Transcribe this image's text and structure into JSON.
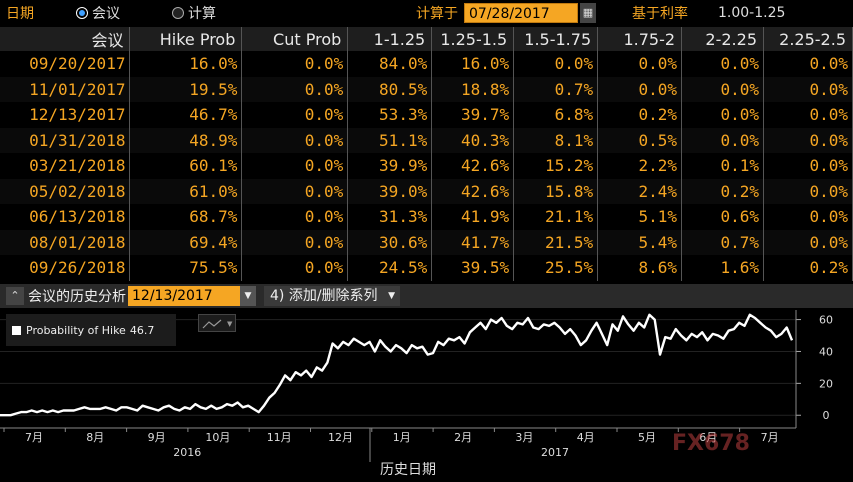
{
  "toolbar": {
    "date_label": "日期",
    "radio_meeting": "会议",
    "radio_calc": "计算",
    "calc_at_label": "计算于",
    "calc_date": "07/28/2017",
    "base_rate_label": "基于利率",
    "base_rate_value": "1.00-1.25"
  },
  "table": {
    "headers": [
      "会议",
      "Hike Prob",
      "Cut Prob",
      "1-1.25",
      "1.25-1.5",
      "1.5-1.75",
      "1.75-2",
      "2-2.25",
      "2.25-2.5"
    ],
    "rows": [
      [
        "09/20/2017",
        "16.0%",
        "0.0%",
        "84.0%",
        "16.0%",
        "0.0%",
        "0.0%",
        "0.0%",
        "0.0%"
      ],
      [
        "11/01/2017",
        "19.5%",
        "0.0%",
        "80.5%",
        "18.8%",
        "0.7%",
        "0.0%",
        "0.0%",
        "0.0%"
      ],
      [
        "12/13/2017",
        "46.7%",
        "0.0%",
        "53.3%",
        "39.7%",
        "6.8%",
        "0.2%",
        "0.0%",
        "0.0%"
      ],
      [
        "01/31/2018",
        "48.9%",
        "0.0%",
        "51.1%",
        "40.3%",
        "8.1%",
        "0.5%",
        "0.0%",
        "0.0%"
      ],
      [
        "03/21/2018",
        "60.1%",
        "0.0%",
        "39.9%",
        "42.6%",
        "15.2%",
        "2.2%",
        "0.1%",
        "0.0%"
      ],
      [
        "05/02/2018",
        "61.0%",
        "0.0%",
        "39.0%",
        "42.6%",
        "15.8%",
        "2.4%",
        "0.2%",
        "0.0%"
      ],
      [
        "06/13/2018",
        "68.7%",
        "0.0%",
        "31.3%",
        "41.9%",
        "21.1%",
        "5.1%",
        "0.6%",
        "0.0%"
      ],
      [
        "08/01/2018",
        "69.4%",
        "0.0%",
        "30.6%",
        "41.7%",
        "21.5%",
        "5.4%",
        "0.7%",
        "0.0%"
      ],
      [
        "09/26/2018",
        "75.5%",
        "0.0%",
        "24.5%",
        "39.5%",
        "25.5%",
        "8.6%",
        "1.6%",
        "0.2%"
      ]
    ]
  },
  "chart_header": {
    "title": "会议的历史分析",
    "meeting_date": "12/13/2017",
    "series_button": "4) 添加/删除系列"
  },
  "legend": {
    "label": "Probability of Hike",
    "value": "46.7"
  },
  "watermark": "FX678",
  "chart_data": {
    "type": "line",
    "xlabel": "历史日期",
    "x_ticks": [
      "7月",
      "8月",
      "9月",
      "10月",
      "11月",
      "12月",
      "1月",
      "2月",
      "3月",
      "4月",
      "5月",
      "6月",
      "7月"
    ],
    "year_labels": [
      {
        "label": "2016",
        "at_tick": 2.5
      },
      {
        "label": "2017",
        "at_tick": 8.5
      }
    ],
    "y_ticks": [
      0,
      20,
      40,
      60
    ],
    "ylim": [
      -8,
      66
    ],
    "axis_side": "right",
    "series": [
      {
        "values": [
          0,
          0,
          0,
          1,
          2,
          2,
          3,
          2,
          3,
          2,
          3,
          2,
          3,
          3,
          3,
          4,
          5,
          4,
          4,
          4,
          5,
          4,
          3,
          5,
          5,
          4,
          3,
          6,
          5,
          4,
          3,
          5,
          6,
          4,
          3,
          5,
          4,
          7,
          5,
          4,
          6,
          4,
          5,
          7,
          6,
          8,
          5,
          6,
          4,
          2,
          6,
          11,
          14,
          19,
          25,
          22,
          27,
          25,
          28,
          24,
          30,
          28,
          33,
          45,
          42,
          46,
          44,
          48,
          46,
          44,
          46,
          40,
          47,
          43,
          40,
          44,
          42,
          39,
          44,
          42,
          43,
          38,
          39,
          46,
          44,
          48,
          47,
          49,
          45,
          52,
          55,
          58,
          54,
          60,
          58,
          61,
          56,
          54,
          58,
          57,
          61,
          55,
          54,
          57,
          56,
          58,
          55,
          51,
          54,
          50,
          44,
          47,
          53,
          58,
          51,
          44,
          57,
          53,
          62,
          57,
          53,
          58,
          55,
          63,
          60,
          38,
          49,
          48,
          54,
          50,
          47,
          51,
          49,
          52,
          47,
          51,
          50,
          48,
          53,
          54,
          58,
          56,
          63,
          61,
          58,
          55,
          53,
          49,
          51,
          55,
          47
        ]
      }
    ]
  }
}
